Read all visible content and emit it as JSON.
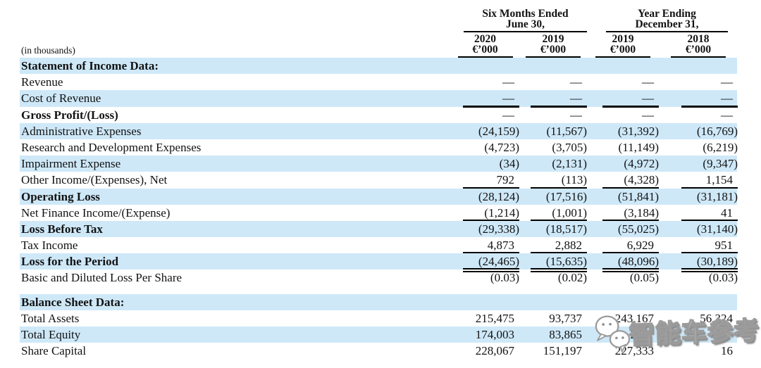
{
  "table": {
    "in_thousands": "(in thousands)",
    "groups": [
      {
        "line1": "Six Months Ended",
        "line2": "June 30,"
      },
      {
        "line1": "Year Ending",
        "line2": "December 31,"
      }
    ],
    "columns": [
      {
        "year": "2020",
        "unit": "€’000"
      },
      {
        "year": "2019",
        "unit": "€’000"
      },
      {
        "year": "2019",
        "unit": "€’000"
      },
      {
        "year": "2018",
        "unit": "€’000"
      }
    ],
    "rows": [
      {
        "key": "statement-of-income-data",
        "label": "Statement of Income Data:",
        "values": [
          "",
          "",
          "",
          ""
        ],
        "bold": true,
        "shaded": true
      },
      {
        "key": "revenue",
        "label": "Revenue",
        "values": [
          "—",
          "—",
          "—",
          "—"
        ]
      },
      {
        "key": "cost-of-revenue",
        "label": "Cost of Revenue",
        "values": [
          "—",
          "—",
          "—",
          "—"
        ],
        "shaded": true,
        "rule": "thick"
      },
      {
        "key": "gross-profit-loss",
        "label": "Gross Profit/(Loss)",
        "values": [
          "—",
          "—",
          "—",
          "—"
        ],
        "bold": true
      },
      {
        "key": "administrative-expenses",
        "label": "Administrative Expenses",
        "values": [
          "(24,159)",
          "(11,567)",
          "(31,392)",
          "(16,769)"
        ],
        "shaded": true
      },
      {
        "key": "research-development-expenses",
        "label": "Research and Development Expenses",
        "values": [
          "(4,723)",
          "(3,705)",
          "(11,149)",
          "(6,219)"
        ]
      },
      {
        "key": "impairment-expense",
        "label": "Impairment Expense",
        "values": [
          "(34)",
          "(2,131)",
          "(4,972)",
          "(9,347)"
        ],
        "shaded": true
      },
      {
        "key": "other-income-expenses-net",
        "label": "Other Income/(Expenses), Net",
        "values": [
          "792",
          "(113)",
          "(4,328)",
          "1,154"
        ],
        "rule": "thin"
      },
      {
        "key": "operating-loss",
        "label": "Operating Loss",
        "values": [
          "(28,124)",
          "(17,516)",
          "(51,841)",
          "(31,181)"
        ],
        "bold": true,
        "shaded": true
      },
      {
        "key": "net-finance-income-expense",
        "label": "Net Finance Income/(Expense)",
        "values": [
          "(1,214)",
          "(1,001)",
          "(3,184)",
          "41"
        ],
        "rule": "thin"
      },
      {
        "key": "loss-before-tax",
        "label": "Loss Before Tax",
        "values": [
          "(29,338)",
          "(18,517)",
          "(55,025)",
          "(31,140)"
        ],
        "bold": true,
        "shaded": true
      },
      {
        "key": "tax-income",
        "label": "Tax Income",
        "values": [
          "4,873",
          "2,882",
          "6,929",
          "951"
        ],
        "rule": "thin"
      },
      {
        "key": "loss-for-the-period",
        "label": "Loss for the Period",
        "values": [
          "(24,465)",
          "(15,635)",
          "(48,096)",
          "(30,189)"
        ],
        "bold": true,
        "shaded": true,
        "rule": "double"
      },
      {
        "key": "basic-diluted-loss-per-share",
        "label": "Basic and Diluted Loss Per Share",
        "values": [
          "(0.03)",
          "(0.02)",
          "(0.05)",
          "(0.03)"
        ],
        "spacer_after": true
      },
      {
        "key": "balance-sheet-data",
        "label": "Balance Sheet Data:",
        "values": [
          "",
          "",
          "",
          ""
        ],
        "bold": true,
        "shaded": true
      },
      {
        "key": "total-assets",
        "label": "Total Assets",
        "values": [
          "215,475",
          "93,737",
          "243,167",
          "56,324"
        ]
      },
      {
        "key": "total-equity",
        "label": "Total Equity",
        "values": [
          "174,003",
          "83,865",
          "2",
          ""
        ],
        "shaded": true
      },
      {
        "key": "share-capital",
        "label": "Share Capital",
        "values": [
          "228,067",
          "151,197",
          "227,333",
          "16"
        ]
      }
    ]
  },
  "watermark": {
    "text": "智能车参考",
    "icon": "wechat-chat-bubbles-icon"
  },
  "colors": {
    "row_shade": "#cee8f8",
    "text": "#121212",
    "rule": "#000000",
    "watermark_gray": "#9b9b9b"
  }
}
